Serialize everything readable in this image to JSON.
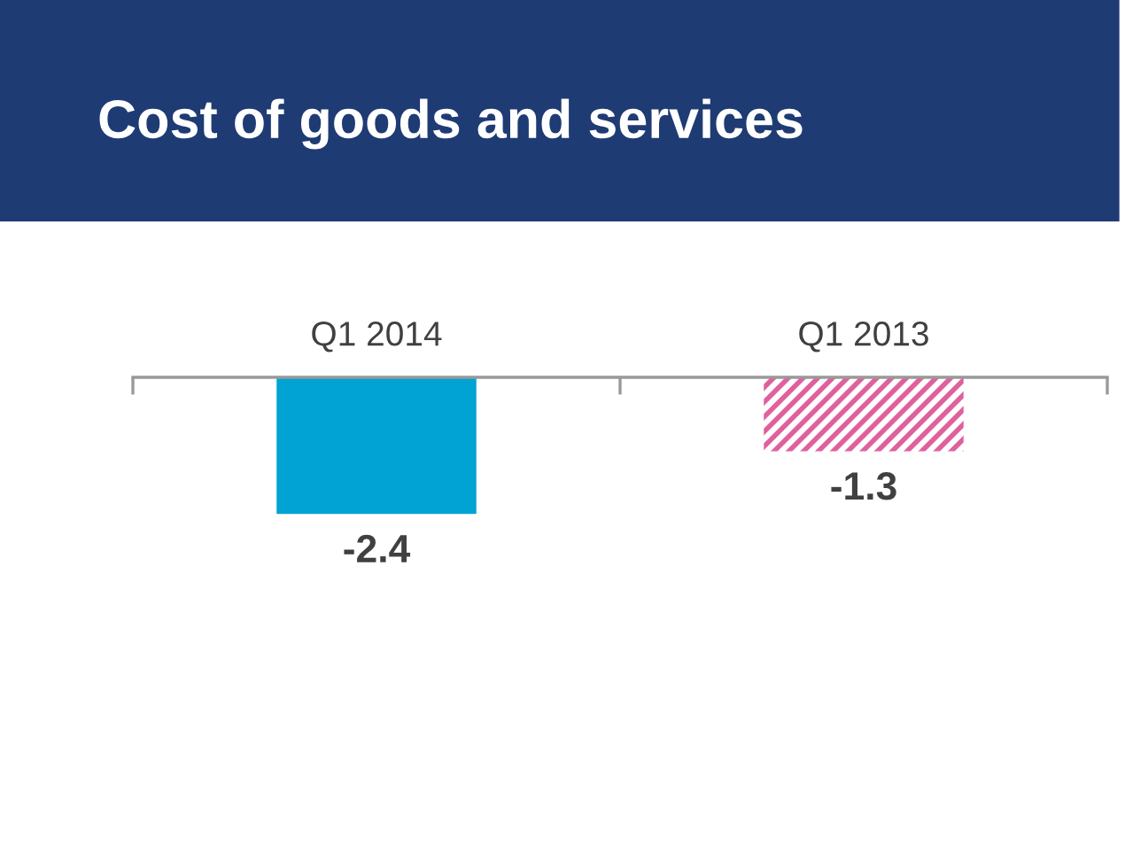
{
  "chart_data": {
    "type": "bar",
    "title": "Cost of goods and services",
    "categories": [
      "Q1 2014",
      "Q1 2013"
    ],
    "values": [
      -2.4,
      -1.3
    ],
    "colors": [
      "#00a3d3",
      "#e0609e"
    ],
    "data_labels": true,
    "grid": false,
    "legend": false
  }
}
